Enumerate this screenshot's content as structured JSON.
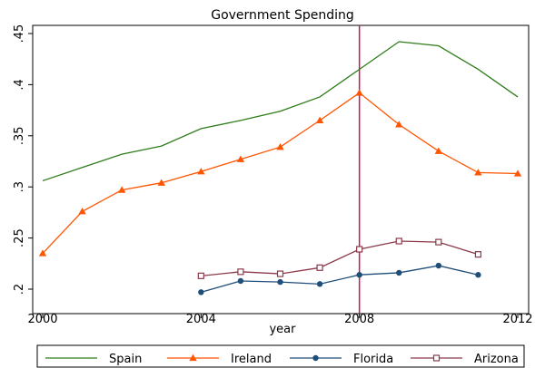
{
  "chart_data": {
    "type": "line",
    "title": "Government Spending",
    "xlabel": "year",
    "ylabel": "",
    "xlim": [
      2000,
      2012
    ],
    "ylim": [
      0.2,
      0.45
    ],
    "x_ticks": [
      2000,
      2004,
      2008,
      2012
    ],
    "y_ticks": [
      0.2,
      0.25,
      0.3,
      0.35,
      0.4,
      0.45
    ],
    "y_tick_labels": [
      ".2",
      ".25",
      ".3",
      ".35",
      ".4",
      ".45"
    ],
    "x_tick_labels": [
      "2000",
      "2004",
      "2008",
      "2012"
    ],
    "reference_line": {
      "x": 2008,
      "color": "#c2185b"
    },
    "grid": false,
    "legend_position": "bottom",
    "series": [
      {
        "name": "Spain",
        "color": "#2e7d1a",
        "marker": "none",
        "x": [
          2000,
          2001,
          2002,
          2003,
          2004,
          2005,
          2006,
          2007,
          2008,
          2009,
          2010,
          2011,
          2012
        ],
        "y": [
          0.306,
          0.319,
          0.332,
          0.34,
          0.357,
          0.365,
          0.374,
          0.388,
          0.415,
          0.442,
          0.438,
          0.415,
          0.388
        ]
      },
      {
        "name": "Ireland",
        "color": "#ff5500",
        "marker": "triangle",
        "x": [
          2000,
          2001,
          2002,
          2003,
          2004,
          2005,
          2006,
          2007,
          2008,
          2009,
          2010,
          2011,
          2012
        ],
        "y": [
          0.235,
          0.276,
          0.297,
          0.304,
          0.315,
          0.327,
          0.339,
          0.365,
          0.392,
          0.361,
          0.335,
          0.314,
          0.313
        ]
      },
      {
        "name": "Florida",
        "color": "#1f4e79",
        "marker": "circle",
        "x": [
          2004,
          2005,
          2006,
          2007,
          2008,
          2009,
          2010,
          2011
        ],
        "y": [
          0.197,
          0.208,
          0.207,
          0.205,
          0.214,
          0.216,
          0.223,
          0.214
        ]
      },
      {
        "name": "Arizona",
        "color": "#8b3a4a",
        "marker": "square-hollow",
        "x": [
          2004,
          2005,
          2006,
          2007,
          2008,
          2009,
          2010,
          2011
        ],
        "y": [
          0.213,
          0.217,
          0.215,
          0.221,
          0.239,
          0.247,
          0.246,
          0.234
        ]
      }
    ]
  }
}
